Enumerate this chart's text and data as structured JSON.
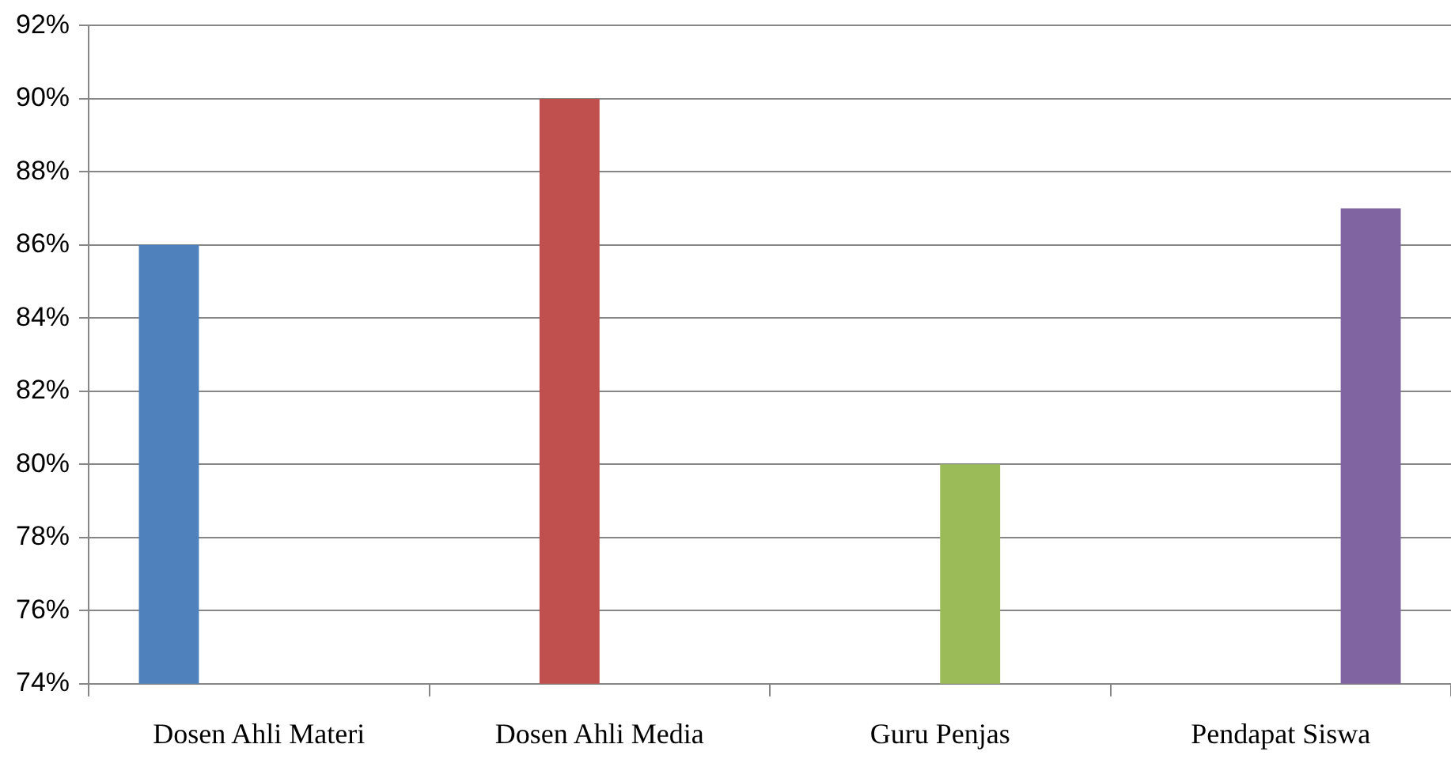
{
  "chart_data": {
    "type": "bar",
    "categories": [
      "Dosen Ahli Materi",
      "Dosen Ahli Media",
      "Guru Penjas",
      "Pendapat Siswa"
    ],
    "series": [
      {
        "color": "#4f81bd",
        "values": [
          86,
          null,
          null,
          null
        ]
      },
      {
        "color": "#c0504d",
        "values": [
          null,
          90,
          null,
          null
        ]
      },
      {
        "color": "#9bbb59",
        "values": [
          null,
          null,
          80,
          null
        ]
      },
      {
        "color": "#8064a2",
        "values": [
          null,
          null,
          null,
          87
        ]
      }
    ],
    "ylim": [
      74,
      92
    ],
    "yticks": [
      {
        "value": 74,
        "label": "74%"
      },
      {
        "value": 76,
        "label": "76%"
      },
      {
        "value": 78,
        "label": "78%"
      },
      {
        "value": 80,
        "label": "80%"
      },
      {
        "value": 82,
        "label": "82%"
      },
      {
        "value": 84,
        "label": "84%"
      },
      {
        "value": 86,
        "label": "86%"
      },
      {
        "value": 88,
        "label": "88%"
      },
      {
        "value": 90,
        "label": "90%"
      },
      {
        "value": 92,
        "label": "92%"
      }
    ],
    "grid": "y",
    "legend": false
  }
}
